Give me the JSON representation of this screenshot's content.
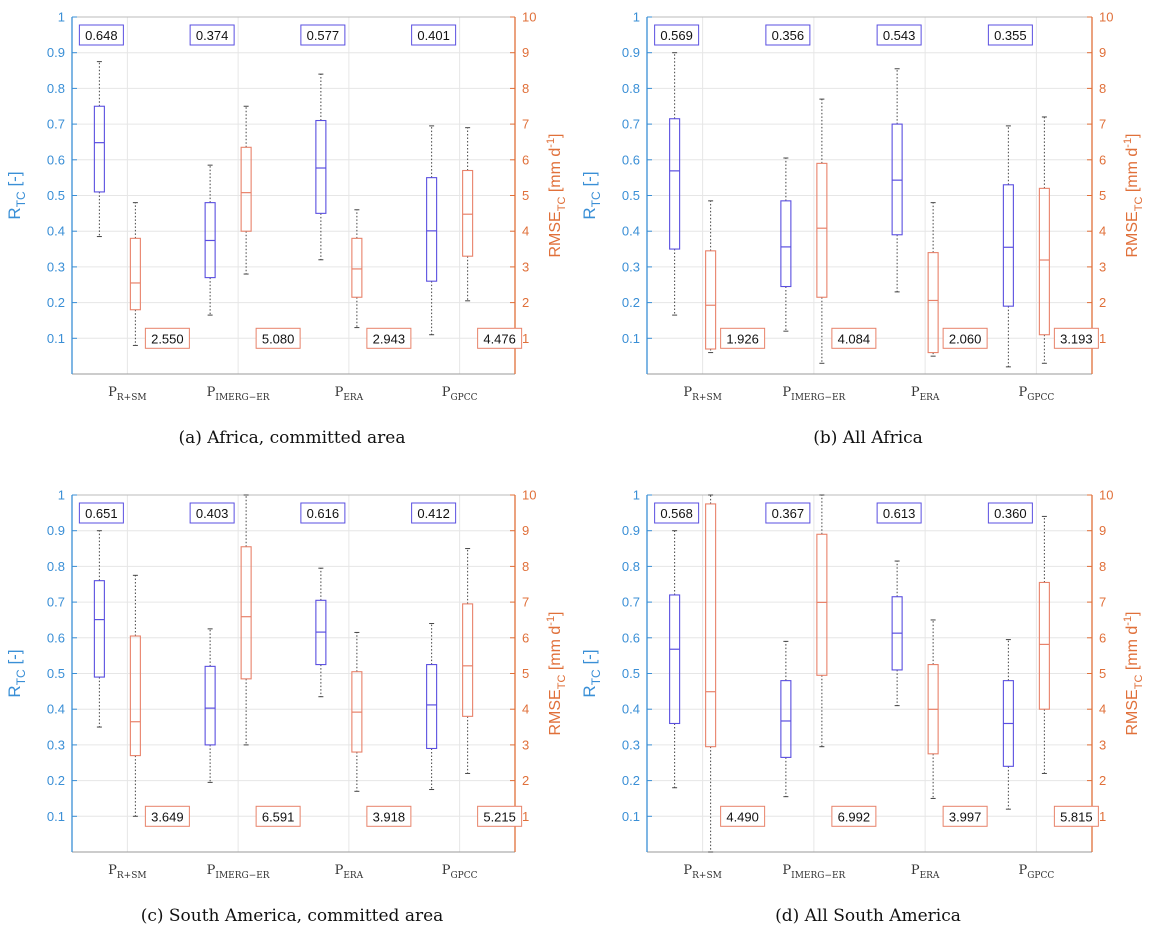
{
  "panel_order": [
    "Africa, committed area",
    "All Africa",
    "South America, committed area",
    "All South America"
  ],
  "colors": {
    "r_tc": "#5a4fe0",
    "rmse_tc": "#e8826a",
    "left_axis": "#3a8fd6",
    "right_axis": "#e0703a",
    "whisker": "#444444",
    "grid": "#e6e6e6"
  },
  "axes": {
    "left_label_main": "R",
    "left_label_sub": "TC",
    "left_label_unit": " [-]",
    "right_label_main": "RMSE",
    "right_label_sub": "TC",
    "right_label_unit": " [mm d",
    "right_label_exp": "-1",
    "right_label_close": "]",
    "left_ticks": [
      "0.1",
      "0.2",
      "0.3",
      "0.4",
      "0.5",
      "0.6",
      "0.7",
      "0.8",
      "0.9",
      "1"
    ],
    "right_ticks": [
      "1",
      "2",
      "3",
      "4",
      "5",
      "6",
      "7",
      "8",
      "9",
      "10"
    ],
    "categories": [
      {
        "main": "P",
        "sub": "R+SM"
      },
      {
        "main": "P",
        "sub": "IMERG−ER"
      },
      {
        "main": "P",
        "sub": "ERA"
      },
      {
        "main": "P",
        "sub": "GPCC"
      }
    ]
  },
  "chart_data": [
    {
      "type": "box",
      "caption": "(a)  Africa, committed area",
      "ylim_left": [
        0,
        1
      ],
      "ylim_right": [
        0,
        10
      ],
      "grid": true,
      "r_tc": [
        {
          "min": 0.385,
          "q1": 0.51,
          "median": 0.648,
          "q3": 0.75,
          "max": 0.875,
          "label": "0.648"
        },
        {
          "min": 0.165,
          "q1": 0.27,
          "median": 0.374,
          "q3": 0.48,
          "max": 0.585,
          "label": "0.374"
        },
        {
          "min": 0.32,
          "q1": 0.45,
          "median": 0.577,
          "q3": 0.71,
          "max": 0.84,
          "label": "0.577"
        },
        {
          "min": 0.11,
          "q1": 0.26,
          "median": 0.401,
          "q3": 0.55,
          "max": 0.695,
          "label": "0.401"
        }
      ],
      "rmse_tc": [
        {
          "min": 0.8,
          "q1": 1.8,
          "median": 2.55,
          "q3": 3.8,
          "max": 4.8,
          "label": "2.550"
        },
        {
          "min": 2.8,
          "q1": 4.0,
          "median": 5.08,
          "q3": 6.35,
          "max": 7.5,
          "label": "5.080"
        },
        {
          "min": 1.3,
          "q1": 2.15,
          "median": 2.943,
          "q3": 3.8,
          "max": 4.6,
          "label": "2.943"
        },
        {
          "min": 2.05,
          "q1": 3.3,
          "median": 4.476,
          "q3": 5.7,
          "max": 6.9,
          "label": "4.476"
        }
      ]
    },
    {
      "type": "box",
      "caption": "(b)  All Africa",
      "ylim_left": [
        0,
        1
      ],
      "ylim_right": [
        0,
        10
      ],
      "grid": true,
      "r_tc": [
        {
          "min": 0.165,
          "q1": 0.35,
          "median": 0.569,
          "q3": 0.715,
          "max": 0.9,
          "label": "0.569"
        },
        {
          "min": 0.12,
          "q1": 0.245,
          "median": 0.356,
          "q3": 0.485,
          "max": 0.605,
          "label": "0.356"
        },
        {
          "min": 0.23,
          "q1": 0.39,
          "median": 0.543,
          "q3": 0.7,
          "max": 0.855,
          "label": "0.543"
        },
        {
          "min": 0.02,
          "q1": 0.19,
          "median": 0.355,
          "q3": 0.53,
          "max": 0.695,
          "label": "0.355"
        }
      ],
      "rmse_tc": [
        {
          "min": 0.6,
          "q1": 0.7,
          "median": 1.926,
          "q3": 3.45,
          "max": 4.85,
          "label": "1.926"
        },
        {
          "min": 0.3,
          "q1": 2.15,
          "median": 4.084,
          "q3": 5.9,
          "max": 7.7,
          "label": "4.084"
        },
        {
          "min": 0.5,
          "q1": 0.6,
          "median": 2.06,
          "q3": 3.4,
          "max": 4.8,
          "label": "2.060"
        },
        {
          "min": 0.3,
          "q1": 1.1,
          "median": 3.193,
          "q3": 5.2,
          "max": 7.2,
          "label": "3.193"
        }
      ]
    },
    {
      "type": "box",
      "caption": "(c)  South America, committed area",
      "ylim_left": [
        0,
        1
      ],
      "ylim_right": [
        0,
        10
      ],
      "grid": true,
      "r_tc": [
        {
          "min": 0.35,
          "q1": 0.49,
          "median": 0.651,
          "q3": 0.76,
          "max": 0.9,
          "label": "0.651"
        },
        {
          "min": 0.195,
          "q1": 0.3,
          "median": 0.403,
          "q3": 0.52,
          "max": 0.625,
          "label": "0.403"
        },
        {
          "min": 0.435,
          "q1": 0.525,
          "median": 0.616,
          "q3": 0.705,
          "max": 0.795,
          "label": "0.616"
        },
        {
          "min": 0.175,
          "q1": 0.29,
          "median": 0.412,
          "q3": 0.525,
          "max": 0.64,
          "label": "0.412"
        }
      ],
      "rmse_tc": [
        {
          "min": 1.0,
          "q1": 2.7,
          "median": 3.649,
          "q3": 6.05,
          "max": 7.75,
          "label": "3.649"
        },
        {
          "min": 3.0,
          "q1": 4.85,
          "median": 6.591,
          "q3": 8.55,
          "max": 10.0,
          "label": "6.591"
        },
        {
          "min": 1.7,
          "q1": 2.8,
          "median": 3.918,
          "q3": 5.05,
          "max": 6.15,
          "label": "3.918"
        },
        {
          "min": 2.2,
          "q1": 3.8,
          "median": 5.215,
          "q3": 6.95,
          "max": 8.5,
          "label": "5.215"
        }
      ]
    },
    {
      "type": "box",
      "caption": "(d)  All South America",
      "ylim_left": [
        0,
        1
      ],
      "ylim_right": [
        0,
        10
      ],
      "grid": true,
      "r_tc": [
        {
          "min": 0.18,
          "q1": 0.36,
          "median": 0.568,
          "q3": 0.72,
          "max": 0.9,
          "label": "0.568"
        },
        {
          "min": 0.155,
          "q1": 0.265,
          "median": 0.367,
          "q3": 0.48,
          "max": 0.59,
          "label": "0.367"
        },
        {
          "min": 0.41,
          "q1": 0.51,
          "median": 0.613,
          "q3": 0.715,
          "max": 0.815,
          "label": "0.613"
        },
        {
          "min": 0.12,
          "q1": 0.24,
          "median": 0.36,
          "q3": 0.48,
          "max": 0.595,
          "label": "0.360"
        }
      ],
      "rmse_tc": [
        {
          "min": 0.0,
          "q1": 2.95,
          "median": 4.49,
          "q3": 9.75,
          "max": 10.0,
          "label": "4.490"
        },
        {
          "min": 2.95,
          "q1": 4.95,
          "median": 6.992,
          "q3": 8.9,
          "max": 10.0,
          "label": "6.992"
        },
        {
          "min": 1.5,
          "q1": 2.75,
          "median": 3.997,
          "q3": 5.25,
          "max": 6.5,
          "label": "3.997"
        },
        {
          "min": 2.2,
          "q1": 4.0,
          "median": 5.815,
          "q3": 7.55,
          "max": 9.4,
          "label": "5.815"
        }
      ]
    }
  ]
}
